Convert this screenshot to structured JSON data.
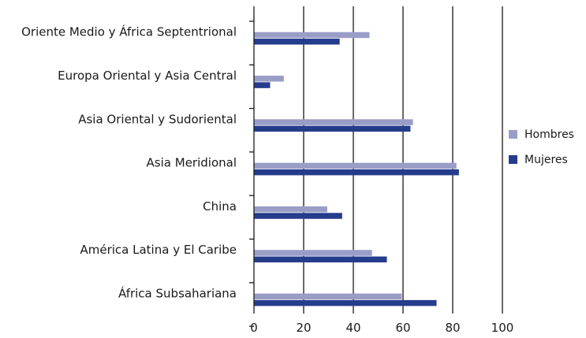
{
  "chart_data": {
    "type": "bar",
    "orientation": "horizontal",
    "title": "",
    "xlabel": "",
    "ylabel": "",
    "xlim": [
      0,
      100
    ],
    "x_ticks": [
      "0",
      "20",
      "40",
      "60",
      "80",
      "100"
    ],
    "grid": "vertical",
    "legend_position": "right",
    "categories": [
      "Oriente Medio y África Septentrional",
      "Europa Oriental y Asia Central",
      "Asia Oriental y Sudoriental",
      "Asia Meridional",
      "China",
      "América Latina y El Caribe",
      "África Subsahariana"
    ],
    "series": [
      {
        "name": "Hombres",
        "color": "#9a9dc6",
        "values": [
          46.5,
          12,
          64,
          81.5,
          29.5,
          47.5,
          59.5
        ]
      },
      {
        "name": "Mujeres",
        "color": "#253c8c",
        "values": [
          34.5,
          6.5,
          63,
          82.5,
          35.5,
          53.5,
          73.5
        ]
      }
    ]
  }
}
